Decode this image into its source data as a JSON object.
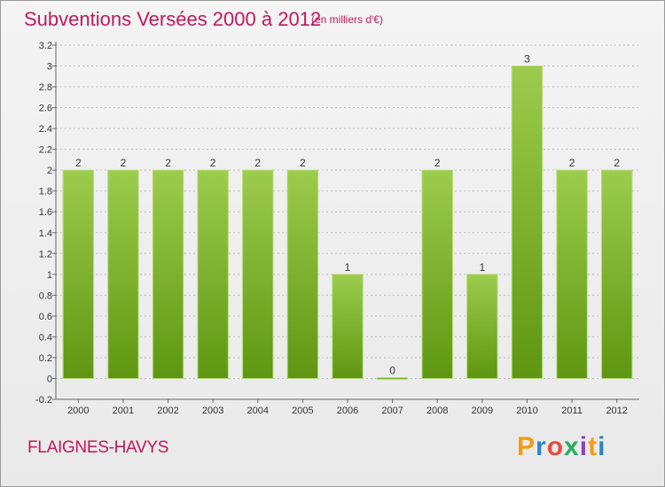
{
  "header": {
    "title": "Subventions Versées 2000 à 2012",
    "subtitle": "(en milliers d'€)"
  },
  "footer": {
    "commune": "FLAIGNES-HAVYS",
    "logo": "Proxiti",
    "logo_colors": [
      "#f39c12",
      "#2e86c1",
      "#e74c3c",
      "#27ae60",
      "#8e44ad",
      "#f39c12",
      "#2e86c1"
    ]
  },
  "colors": {
    "bar_light": "#9ccc4d",
    "bar_dark": "#5e9611",
    "accent": "#c2185b",
    "grid": "#bfbfbf"
  },
  "chart_data": {
    "type": "bar",
    "categories": [
      "2000",
      "2001",
      "2002",
      "2003",
      "2004",
      "2005",
      "2006",
      "2007",
      "2008",
      "2009",
      "2010",
      "2011",
      "2012"
    ],
    "values": [
      2,
      2,
      2,
      2,
      2,
      2,
      1,
      0,
      2,
      1,
      3,
      2,
      2
    ],
    "value_labels": [
      "2",
      "2",
      "2",
      "2",
      "2",
      "2",
      "1",
      "0",
      "2",
      "1",
      "3",
      "2",
      "2"
    ],
    "yticks": [
      "-0.2",
      "0",
      "0.2",
      "0.4",
      "0.6",
      "0.8",
      "1",
      "1.2",
      "1.4",
      "1.6",
      "1.8",
      "2",
      "2.2",
      "2.4",
      "2.6",
      "2.8",
      "3",
      "3.2"
    ],
    "ylim": [
      -0.2,
      3.2
    ],
    "grid": true
  }
}
